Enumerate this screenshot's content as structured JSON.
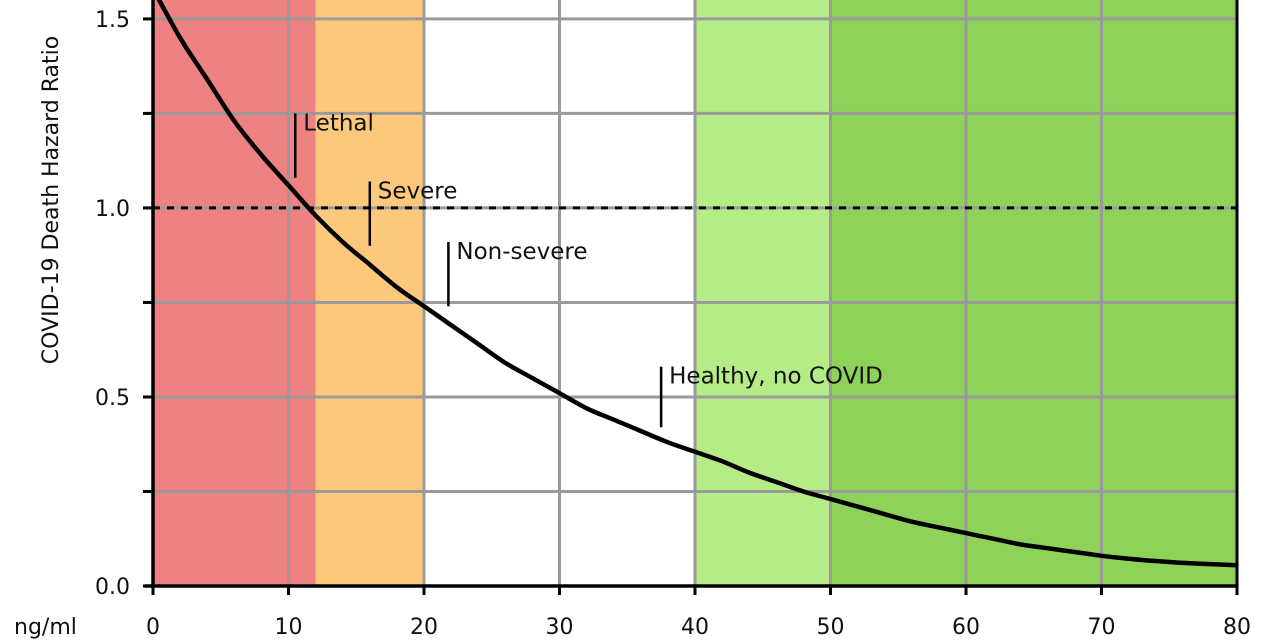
{
  "chart_data": {
    "type": "line",
    "title": "",
    "xlabel": "ng/ml",
    "ylabel": "COVID-19 Death Hazard Ratio",
    "xlim": [
      0,
      80
    ],
    "ylim": [
      0,
      1.55
    ],
    "grid": true,
    "x_ticks": [
      0,
      10,
      20,
      30,
      40,
      50,
      60,
      70,
      80
    ],
    "x_tick_labels": [
      "0",
      "10",
      "20",
      "30",
      "40",
      "50",
      "60",
      "70",
      "80"
    ],
    "y_ticks": [
      0.0,
      0.25,
      0.5,
      0.75,
      1.0,
      1.25,
      1.5
    ],
    "y_tick_labels": [
      "0.0",
      "",
      "0.5",
      "",
      "1.0",
      "",
      "1.5"
    ],
    "reference_line": {
      "y": 1.0,
      "style": "dotted"
    },
    "bands": [
      {
        "x0": 0,
        "x1": 12,
        "color": "#ee8181"
      },
      {
        "x0": 12,
        "x1": 20,
        "color": "#fcc97c"
      },
      {
        "x0": 20,
        "x1": 40,
        "color": "#ffffff"
      },
      {
        "x0": 40,
        "x1": 50,
        "color": "#b5ec86"
      },
      {
        "x0": 50,
        "x1": 80,
        "color": "#8ed25a"
      }
    ],
    "series": [
      {
        "x": [
          0,
          2,
          4,
          6,
          8,
          10,
          12,
          14,
          16,
          18,
          20,
          22,
          24,
          26,
          28,
          30,
          32,
          34,
          36,
          38,
          40,
          42,
          44,
          46,
          48,
          50,
          52,
          54,
          56,
          58,
          60,
          62,
          64,
          66,
          68,
          70,
          72,
          74,
          76,
          78,
          80
        ],
        "y": [
          1.58,
          1.45,
          1.34,
          1.23,
          1.14,
          1.06,
          0.98,
          0.91,
          0.85,
          0.79,
          0.74,
          0.69,
          0.64,
          0.59,
          0.55,
          0.51,
          0.47,
          0.44,
          0.41,
          0.38,
          0.355,
          0.33,
          0.3,
          0.275,
          0.25,
          0.23,
          0.21,
          0.19,
          0.17,
          0.155,
          0.14,
          0.125,
          0.11,
          0.1,
          0.09,
          0.08,
          0.072,
          0.066,
          0.061,
          0.058,
          0.055
        ]
      }
    ],
    "annotations": [
      {
        "label": "Lethal",
        "x": 10.5,
        "y_top": 1.25,
        "y_bottom": 1.08
      },
      {
        "label": "Severe",
        "x": 16.0,
        "y_top": 1.07,
        "y_bottom": 0.9
      },
      {
        "label": "Non-severe",
        "x": 21.8,
        "y_top": 0.91,
        "y_bottom": 0.74
      },
      {
        "label": "Healthy, no COVID",
        "x": 37.5,
        "y_top": 0.58,
        "y_bottom": 0.42
      }
    ]
  }
}
